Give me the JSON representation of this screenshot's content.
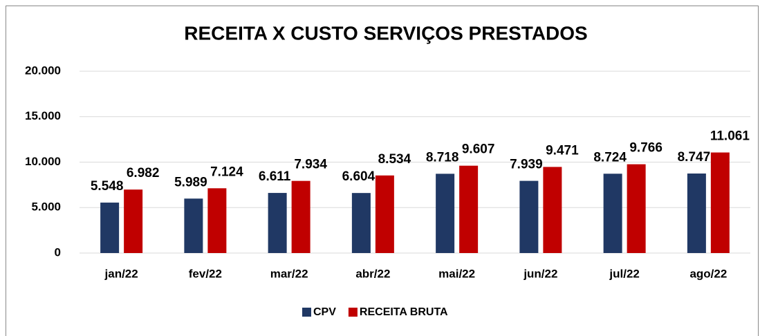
{
  "chart_data": {
    "type": "bar",
    "title": "RECEITA X CUSTO SERVIÇOS PRESTADOS",
    "categories": [
      "jan/22",
      "fev/22",
      "mar/22",
      "abr/22",
      "mai/22",
      "jun/22",
      "jul/22",
      "ago/22"
    ],
    "series": [
      {
        "name": "CPV",
        "color": "#203864",
        "values": [
          5548,
          5989,
          6611,
          6604,
          8718,
          7939,
          8724,
          8747
        ],
        "value_labels": [
          "5.548",
          "5.989",
          "6.611",
          "6.604",
          "8.718",
          "7.939",
          "8.724",
          "8.747"
        ]
      },
      {
        "name": "RECEITA BRUTA",
        "color": "#c00000",
        "values": [
          6982,
          7124,
          7934,
          8534,
          9607,
          9471,
          9766,
          11061
        ],
        "value_labels": [
          "6.982",
          "7.124",
          "7.934",
          "8.534",
          "9.607",
          "9.471",
          "9.766",
          "11.061"
        ]
      }
    ],
    "ylim": [
      0,
      20000
    ],
    "yticks": [
      0,
      {
        "value": 5000,
        "label": "5.000"
      },
      {
        "value": 10000,
        "label": "10.000"
      },
      {
        "value": 15000,
        "label": "15.000"
      },
      {
        "value": 20000,
        "label": "20.000"
      }
    ],
    "grid": true,
    "legend": "bottom"
  }
}
